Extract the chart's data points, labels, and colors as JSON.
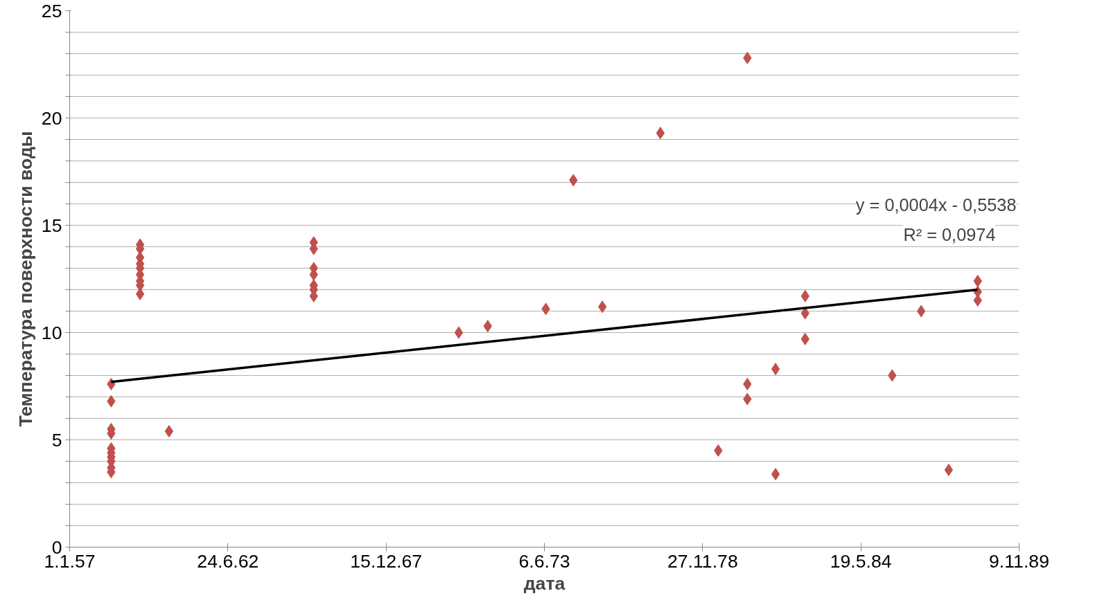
{
  "chart_data": {
    "type": "scatter",
    "xlabel": "дата",
    "ylabel": "Температура поверхности воды",
    "grid": "y",
    "xlim": [
      "1957-01-01",
      "1989-11-09"
    ],
    "xticks": [
      {
        "value": "1957-01-01",
        "label": "1.1.57"
      },
      {
        "value": "1962-06-24",
        "label": "24.6.62"
      },
      {
        "value": "1967-12-15",
        "label": "15.12.67"
      },
      {
        "value": "1973-06-06",
        "label": "6.6.73"
      },
      {
        "value": "1978-11-27",
        "label": "27.11.78"
      },
      {
        "value": "1984-05-19",
        "label": "19.5.84"
      },
      {
        "value": "1989-11-09",
        "label": "9.11.89"
      }
    ],
    "ylim": [
      0,
      25
    ],
    "yticks": [
      0,
      {
        "value": 1,
        "label": null
      },
      {
        "value": 2,
        "label": null
      },
      {
        "value": 3,
        "label": null
      },
      {
        "value": 4,
        "label": null
      },
      5,
      {
        "value": 6,
        "label": null
      },
      {
        "value": 7,
        "label": null
      },
      {
        "value": 8,
        "label": null
      },
      {
        "value": 9,
        "label": null
      },
      10,
      {
        "value": 11,
        "label": null
      },
      {
        "value": 12,
        "label": null
      },
      {
        "value": 13,
        "label": null
      },
      {
        "value": 14,
        "label": null
      },
      15,
      {
        "value": 16,
        "label": null
      },
      {
        "value": 17,
        "label": null
      },
      {
        "value": 18,
        "label": null
      },
      {
        "value": 19,
        "label": null
      },
      20,
      {
        "value": 21,
        "label": null
      },
      {
        "value": 22,
        "label": null
      },
      {
        "value": 23,
        "label": null
      },
      {
        "value": 24,
        "label": null
      },
      25
    ],
    "annotations": [
      "y = 0,0004x - 0,5538",
      "R² = 0,0974"
    ],
    "series": [
      {
        "marker": "diamond",
        "color": "#c0504d",
        "x": [
          "1958-06-10",
          "1958-06-10",
          "1958-06-10",
          "1958-06-10",
          "1958-06-10",
          "1958-06-10",
          "1958-06-10",
          "1958-06-10",
          "1958-06-10",
          "1958-06-10",
          "1959-06-10",
          "1959-06-10",
          "1959-06-10",
          "1959-06-10",
          "1959-06-10",
          "1959-06-10",
          "1959-06-10",
          "1959-06-10",
          "1959-06-10",
          "1960-06-10",
          "1965-06-13",
          "1965-06-13",
          "1965-06-13",
          "1965-06-13",
          "1965-06-13",
          "1965-06-13",
          "1965-06-13",
          "1970-06-20",
          "1971-06-21",
          "1973-06-24",
          "1974-06-07",
          "1975-06-09",
          "1977-06-11",
          "1979-06-12",
          "1980-06-14",
          "1980-06-14",
          "1980-06-14",
          "1981-06-06",
          "1981-06-06",
          "1982-06-15",
          "1982-06-15",
          "1982-06-15",
          "1985-06-19",
          "1986-06-20",
          "1987-06-03",
          "1988-06-04",
          "1988-06-04",
          "1988-06-04"
        ],
        "values": [
          7.6,
          6.8,
          5.5,
          5.3,
          4.6,
          4.4,
          4.2,
          4.0,
          3.7,
          3.5,
          14.1,
          13.9,
          13.5,
          13.2,
          13.0,
          12.7,
          12.4,
          12.2,
          11.8,
          5.4,
          14.2,
          13.9,
          13.0,
          12.7,
          12.2,
          12.0,
          11.7,
          10.0,
          10.3,
          11.1,
          17.1,
          11.2,
          19.3,
          4.5,
          22.8,
          7.6,
          6.9,
          8.3,
          3.4,
          11.7,
          10.9,
          9.7,
          8.0,
          11.0,
          3.6,
          12.4,
          11.9,
          11.5
        ]
      },
      {
        "type": "line",
        "color": "#000000",
        "x": [
          "1958-06-10",
          "1988-06-04"
        ],
        "values": [
          7.7,
          12.0
        ]
      }
    ]
  }
}
